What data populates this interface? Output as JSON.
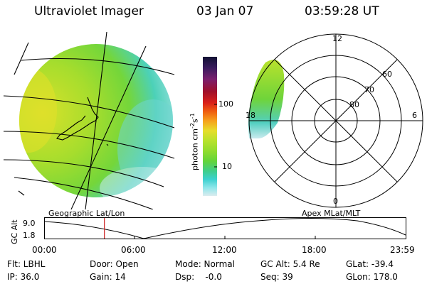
{
  "header": {
    "title": "Ultraviolet Imager",
    "date": "03 Jan 07",
    "time": "03:59:28 UT"
  },
  "colorbar": {
    "unit": "photon cm",
    "unit_sup1": "-2",
    "unit_mid": "s",
    "unit_sup2": "-1",
    "ticks": [
      "100",
      "10"
    ],
    "colors_top_to_bottom": [
      "#111133",
      "#3a1b5e",
      "#7a1f6e",
      "#a0102a",
      "#d9201a",
      "#ee5a10",
      "#f6a11c",
      "#e7dd2b",
      "#b9e22c",
      "#8fdc2e",
      "#63d43a",
      "#3fce8a",
      "#3cd1cf",
      "#8ee6ea",
      "#dcecef"
    ]
  },
  "map_left": {
    "label": "Geographic Lat/Lon"
  },
  "map_right": {
    "label": "Apex  MLat/MLT",
    "lat_labels": [
      "60",
      "70",
      "80"
    ],
    "mlt_labels": [
      "12",
      "18",
      "6",
      "0"
    ]
  },
  "timeline": {
    "ylabel": "GC Alt",
    "yticks": [
      "9.0",
      "1.8"
    ],
    "xticks": [
      "00:00",
      "06:00",
      "12:00",
      "18:00",
      "23:59"
    ],
    "marker_hour": 4.0,
    "marker_color": "#cc2222"
  },
  "info": {
    "flt": "Flt: LBHL",
    "ip": "IP: 36.0",
    "door": "Door: Open",
    "gain": "Gain: 14",
    "mode": "Mode: Normal",
    "dsp": "Dsp:    -0.0",
    "gcalt": "GC Alt: 5.4 Re",
    "seq": "Seq: 39",
    "glat": "GLat: -39.4",
    "glon": "GLon: 178.0"
  }
}
